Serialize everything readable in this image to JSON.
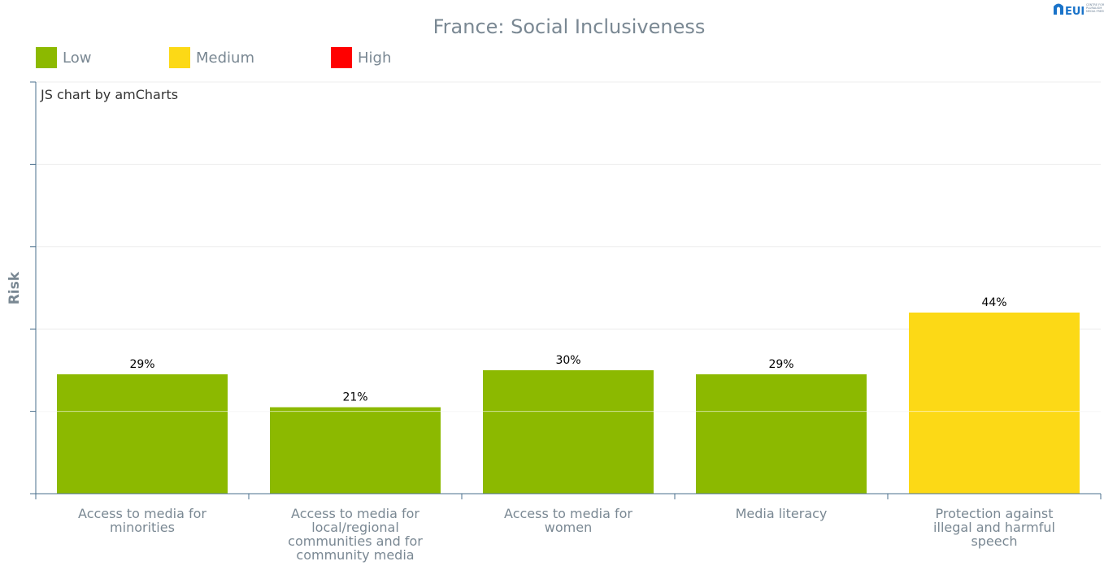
{
  "logo": {
    "text": "EUI",
    "small_lines": [
      "CENTRE FOR",
      "PLURALISM",
      "MEDIA FREEDOM"
    ]
  },
  "credit": "JS chart by amCharts",
  "colors": {
    "low": "#8cb900",
    "medium": "#fcd916",
    "high": "#ff0000",
    "text": "#7a8893",
    "axis": "#4a6f8c",
    "grid": "#eeeeee"
  },
  "chart_data": {
    "type": "bar",
    "title": "France: Social Inclusiveness",
    "xlabel": "",
    "ylabel": "Risk",
    "ylim": [
      0,
      100
    ],
    "grid": true,
    "legend_position": "top-left",
    "legend": [
      {
        "name": "Low",
        "color": "#8cb900"
      },
      {
        "name": "Medium",
        "color": "#fcd916"
      },
      {
        "name": "High",
        "color": "#ff0000"
      }
    ],
    "categories": [
      [
        "Access to media for",
        "minorities"
      ],
      [
        "Access to media for",
        "local/regional",
        "communities and for",
        "community media"
      ],
      [
        "Access to media for",
        "women"
      ],
      [
        "Media literacy"
      ],
      [
        "Protection against",
        "illegal and harmful",
        "speech"
      ]
    ],
    "values": [
      29,
      21,
      30,
      29,
      44
    ],
    "value_labels": [
      "29%",
      "21%",
      "30%",
      "29%",
      "44%"
    ],
    "risk_levels": [
      "Low",
      "Low",
      "Low",
      "Low",
      "Medium"
    ]
  }
}
